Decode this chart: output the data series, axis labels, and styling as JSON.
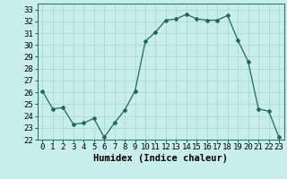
{
  "x": [
    0,
    1,
    2,
    3,
    4,
    5,
    6,
    7,
    8,
    9,
    10,
    11,
    12,
    13,
    14,
    15,
    16,
    17,
    18,
    19,
    20,
    21,
    22,
    23
  ],
  "y": [
    26.1,
    24.6,
    24.7,
    23.3,
    23.4,
    23.8,
    22.2,
    23.4,
    24.5,
    26.1,
    30.3,
    31.1,
    32.1,
    32.2,
    32.6,
    32.2,
    32.1,
    32.1,
    32.5,
    30.4,
    28.6,
    24.6,
    24.4,
    22.2
  ],
  "line_color": "#1a6b5a",
  "marker": "D",
  "marker_size": 2.0,
  "bg_color": "#c8eeeb",
  "grid_color": "#afd8d3",
  "xlabel": "Humidex (Indice chaleur)",
  "ylim": [
    22,
    33.5
  ],
  "xlim": [
    -0.5,
    23.5
  ],
  "yticks": [
    22,
    23,
    24,
    25,
    26,
    27,
    28,
    29,
    30,
    31,
    32,
    33
  ],
  "xticks": [
    0,
    1,
    2,
    3,
    4,
    5,
    6,
    7,
    8,
    9,
    10,
    11,
    12,
    13,
    14,
    15,
    16,
    17,
    18,
    19,
    20,
    21,
    22,
    23
  ],
  "tick_labelsize": 6.5,
  "xlabel_fontsize": 7.5,
  "xlabel_bold": true
}
